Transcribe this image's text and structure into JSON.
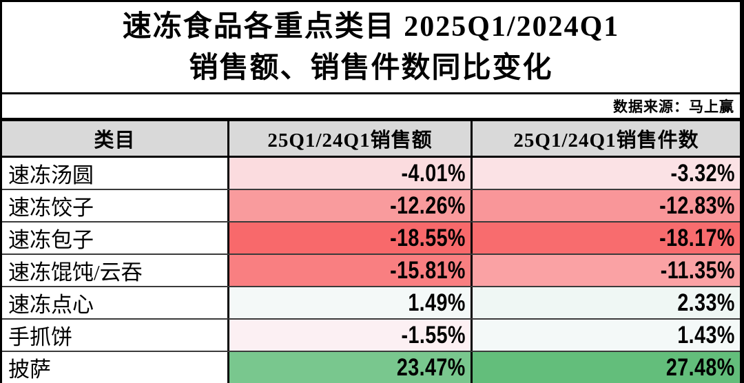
{
  "title": {
    "line1": "速冻食品各重点类目 2025Q1/2024Q1",
    "line2": "销售额、销售件数同比变化"
  },
  "source": "数据来源：马上赢",
  "table": {
    "headers": [
      "类目",
      "25Q1/24Q1销售额",
      "25Q1/24Q1销售件数"
    ],
    "rows": [
      {
        "category": "速冻汤圆",
        "sales_value": "-4.01%",
        "sales_units": "-3.32%"
      },
      {
        "category": "速冻饺子",
        "sales_value": "-12.26%",
        "sales_units": "-12.83%"
      },
      {
        "category": "速冻包子",
        "sales_value": "-18.55%",
        "sales_units": "-18.17%"
      },
      {
        "category": "速冻馄饨/云吞",
        "sales_value": "-15.81%",
        "sales_units": "-11.35%"
      },
      {
        "category": "速冻点心",
        "sales_value": "1.49%",
        "sales_units": "2.33%"
      },
      {
        "category": "手抓饼",
        "sales_value": "-1.55%",
        "sales_units": "1.43%"
      },
      {
        "category": "披萨",
        "sales_value": "23.47%",
        "sales_units": "27.48%"
      }
    ]
  },
  "colors": {
    "header_bg": "#D9D9D9",
    "border": "#000000",
    "row_divider": "#3a3a3a"
  },
  "chart_data": {
    "type": "table",
    "title": "速冻食品各重点类目 2025Q1/2024Q1 销售额、销售件数同比变化",
    "source": "数据来源：马上赢",
    "unit": "%",
    "categories": [
      "速冻汤圆",
      "速冻饺子",
      "速冻包子",
      "速冻馄饨/云吞",
      "速冻点心",
      "手抓饼",
      "披萨"
    ],
    "series": [
      {
        "name": "25Q1/24Q1销售额",
        "values": [
          -4.01,
          -12.26,
          -18.55,
          -15.81,
          1.49,
          -1.55,
          23.47
        ]
      },
      {
        "name": "25Q1/24Q1销售件数",
        "values": [
          -3.32,
          -12.83,
          -18.17,
          -11.35,
          2.33,
          1.43,
          27.48
        ]
      }
    ],
    "heatmap_scale": {
      "min_color": "#F8696B",
      "mid_color": "#FCFCFF",
      "max_color": "#63BE7B",
      "domain": [
        -18.55,
        0,
        27.48
      ]
    }
  }
}
